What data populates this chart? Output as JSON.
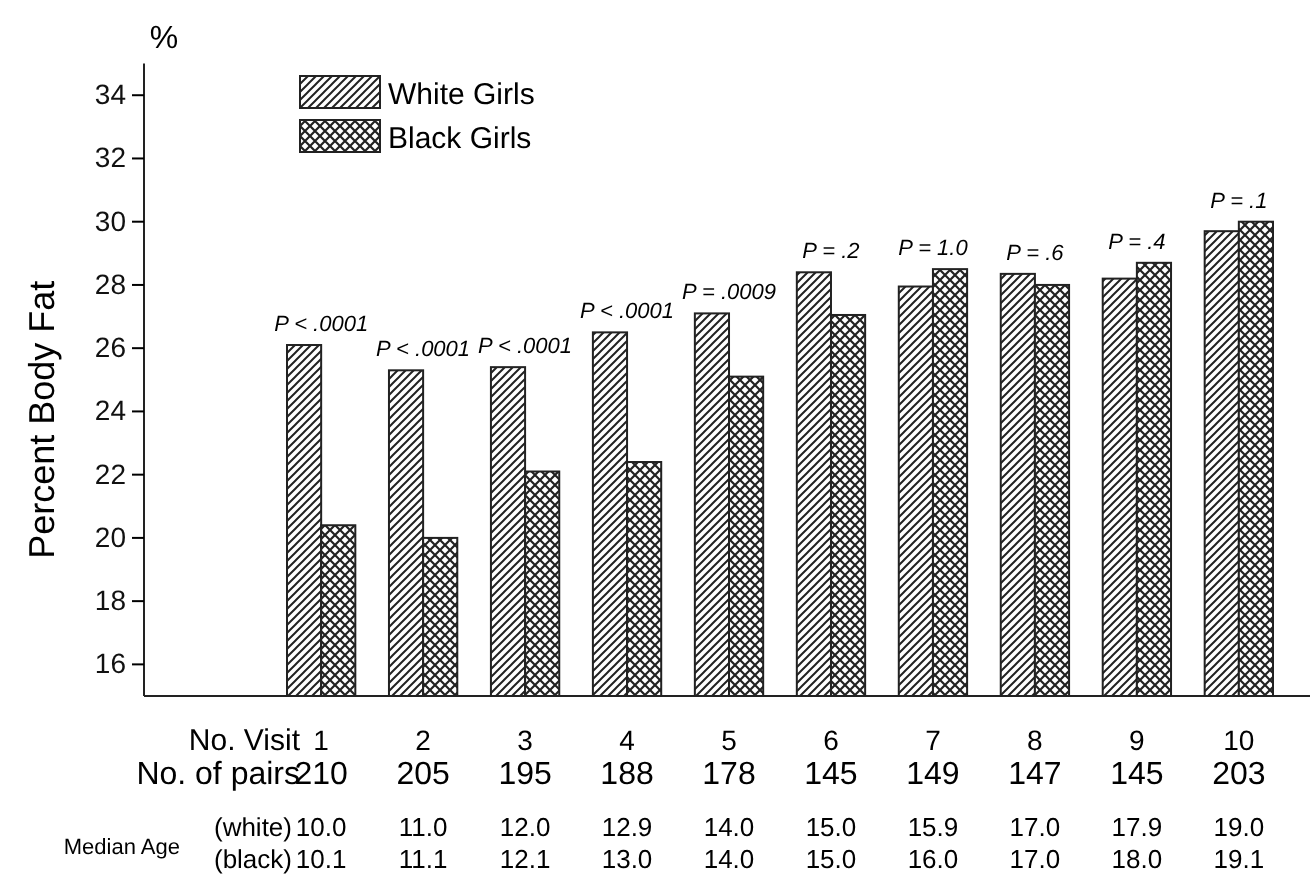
{
  "chart_data": {
    "type": "bar",
    "ylabel": "Percent Body Fat",
    "xlabel": "No. Visit",
    "categories": [
      "1",
      "2",
      "3",
      "4",
      "5",
      "6",
      "7",
      "8",
      "9",
      "10"
    ],
    "series": [
      {
        "name": "White Girls",
        "color": "#222222",
        "values": [
          26.1,
          25.3,
          25.4,
          26.5,
          27.1,
          28.4,
          27.95,
          28.35,
          28.2,
          29.7
        ]
      },
      {
        "name": "Black Girls",
        "color": "#222222",
        "values": [
          20.4,
          20.0,
          22.1,
          22.4,
          25.1,
          27.05,
          28.5,
          28.0,
          28.7,
          30.0
        ]
      }
    ],
    "ylim": [
      15,
      35
    ],
    "yticks": [
      16,
      18,
      20,
      22,
      24,
      26,
      28,
      30,
      32,
      34
    ],
    "grid": false,
    "legend": "top left",
    "annotations": [
      "%",
      "No. of pairs",
      "Median Age",
      "(white)",
      "(black)",
      {
        "text": "P < .0001",
        "x": "1",
        "y": 26.1
      },
      {
        "text": "P < .0001",
        "x": "2",
        "y": 25.3
      },
      {
        "text": "P < .0001",
        "x": "3",
        "y": 25.4
      },
      {
        "text": "P < .0001",
        "x": "4",
        "y": 26.5
      },
      {
        "text": "P = .0009",
        "x": "5",
        "y": 27.1
      },
      {
        "text": "P = .2",
        "x": "6",
        "y": 28.4
      },
      {
        "text": "P = 1.0",
        "x": "7",
        "y": 28.5
      },
      {
        "text": "P = .6",
        "x": "8",
        "y": 28.35
      },
      {
        "text": "P = .4",
        "x": "9",
        "y": 28.7
      },
      {
        "text": "P = .1",
        "x": "10",
        "y": 30.0
      },
      "210",
      "205",
      "195",
      "188",
      "178",
      "145",
      "149",
      "147",
      "145",
      "203",
      "10.0",
      "11.0",
      "12.0",
      "12.9",
      "14.0",
      "15.0",
      "15.9",
      "17.0",
      "17.9",
      "19.0",
      "10.1",
      "11.1",
      "12.1",
      "13.0",
      "14.0",
      "15.0",
      "16.0",
      "17.0",
      "18.0",
      "19.1"
    ]
  }
}
